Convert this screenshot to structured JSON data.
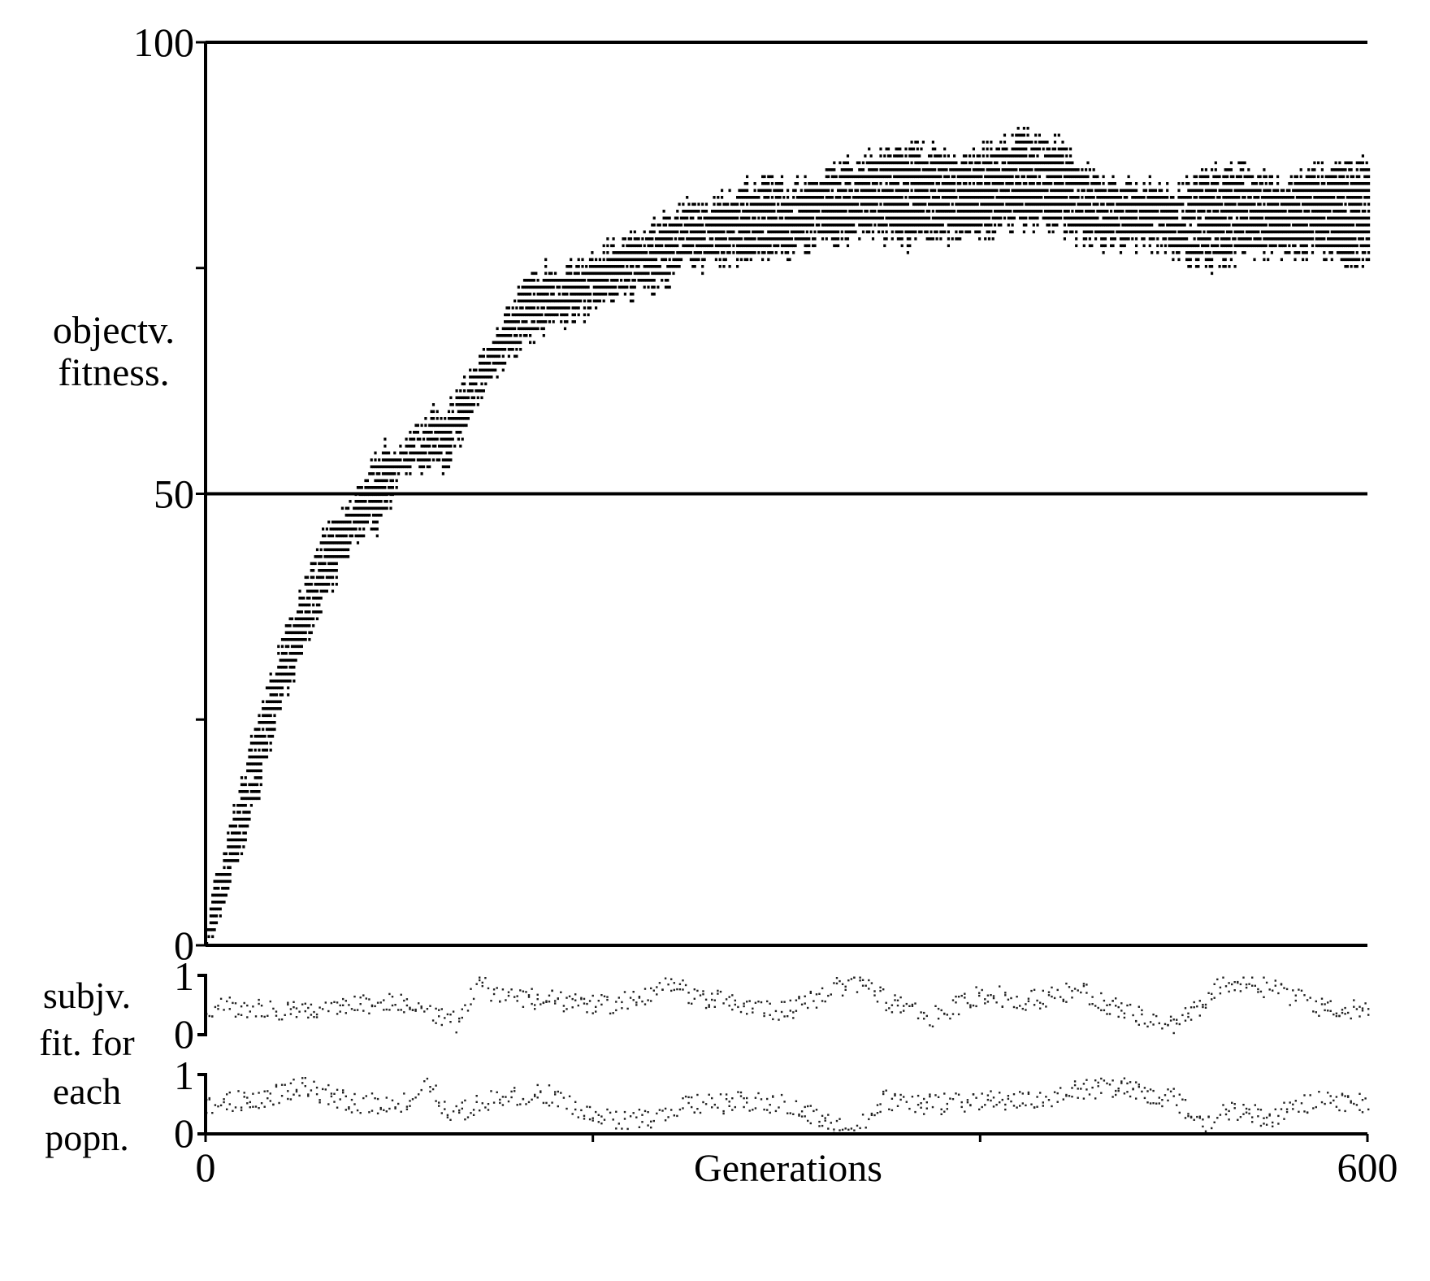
{
  "chart_data": {
    "type": "scatter",
    "xlabel": "Generations",
    "xlim": [
      0,
      600
    ],
    "x_ticks": [
      0,
      200,
      400,
      600
    ],
    "x_tick_labels": {
      "0": "0",
      "600": "600"
    },
    "gridlines_y": [
      50,
      100
    ],
    "panels": [
      {
        "id": "objective",
        "ylabel_lines": [
          "objectv.",
          "fitness."
        ],
        "ylim": [
          0,
          100
        ],
        "y_ticks": [
          0,
          25,
          50,
          75,
          100
        ],
        "y_tick_labels": {
          "0": "0",
          "50": "50",
          "100": "100"
        },
        "series": [
          {
            "x": [
              0,
              12,
              25,
              38,
              50,
              62,
              75,
              88,
              100,
              112,
              125,
              138,
              150,
              162,
              175,
              188,
              200,
              212,
              225,
              238,
              250,
              262,
              275,
              288,
              300,
              312,
              325,
              338,
              350,
              362,
              375,
              388,
              400,
              412,
              425,
              438,
              450,
              462,
              475,
              488,
              500,
              512,
              525,
              538,
              550,
              562,
              575,
              588,
              600
            ],
            "y_low": [
              0,
              7,
              16,
              27,
              33,
              39,
              45,
              47,
              52,
              53,
              54,
              60,
              64,
              67,
              69,
              70,
              71,
              72,
              73,
              74,
              76,
              76,
              76,
              77,
              77,
              78,
              78,
              79,
              79,
              78,
              79,
              79,
              79,
              80,
              80,
              80,
              79,
              78,
              78,
              78,
              77,
              76,
              76,
              77,
              77,
              77,
              77,
              76,
              76
            ],
            "y_high": [
              3,
              13,
              24,
              33,
              40,
              47,
              49,
              55,
              55,
              58,
              60,
              64,
              68,
              73,
              75,
              75,
              76,
              78,
              79,
              81,
              82,
              82,
              84,
              85,
              84,
              85,
              86,
              87,
              88,
              88,
              88,
              87,
              88,
              89,
              90,
              89,
              87,
              85,
              84,
              84,
              84,
              85,
              86,
              86,
              85,
              85,
              86,
              87,
              87
            ]
          }
        ]
      },
      {
        "id": "subjective-pop-1",
        "ylim": [
          0,
          1
        ],
        "y_tick_labels": {
          "0": "0",
          "1": "1"
        },
        "series": [
          {
            "x": [
              0,
              25,
              50,
              75,
              100,
              125,
              130,
              140,
              150,
              175,
              200,
              225,
              237,
              250,
              275,
              300,
              325,
              337,
              350,
              375,
              400,
              425,
              450,
              475,
              500,
              515,
              525,
              550,
              575,
              600
            ],
            "y": [
              0.5,
              0.45,
              0.4,
              0.5,
              0.55,
              0.3,
              0.2,
              0.9,
              0.7,
              0.6,
              0.5,
              0.6,
              0.9,
              0.7,
              0.5,
              0.4,
              0.8,
              0.9,
              0.6,
              0.3,
              0.7,
              0.6,
              0.75,
              0.4,
              0.2,
              0.5,
              0.9,
              0.8,
              0.5,
              0.4
            ]
          }
        ]
      },
      {
        "id": "subjective-pop-2",
        "ylim": [
          0,
          1
        ],
        "y_tick_labels": {
          "0": "0",
          "1": "1"
        },
        "series": [
          {
            "x": [
              0,
              25,
              50,
              75,
              100,
              115,
              125,
              140,
              150,
              175,
              200,
              225,
              250,
              275,
              300,
              325,
              337,
              350,
              375,
              400,
              425,
              450,
              475,
              500,
              515,
              525,
              550,
              575,
              600
            ],
            "y": [
              0.5,
              0.6,
              0.8,
              0.55,
              0.5,
              0.85,
              0.3,
              0.5,
              0.6,
              0.7,
              0.3,
              0.25,
              0.5,
              0.55,
              0.5,
              0.15,
              0.1,
              0.6,
              0.5,
              0.6,
              0.55,
              0.75,
              0.8,
              0.6,
              0.2,
              0.4,
              0.3,
              0.6,
              0.55
            ]
          }
        ]
      }
    ],
    "side_label_lines": [
      "subjv.",
      "fit. for",
      "each",
      "popn."
    ]
  }
}
